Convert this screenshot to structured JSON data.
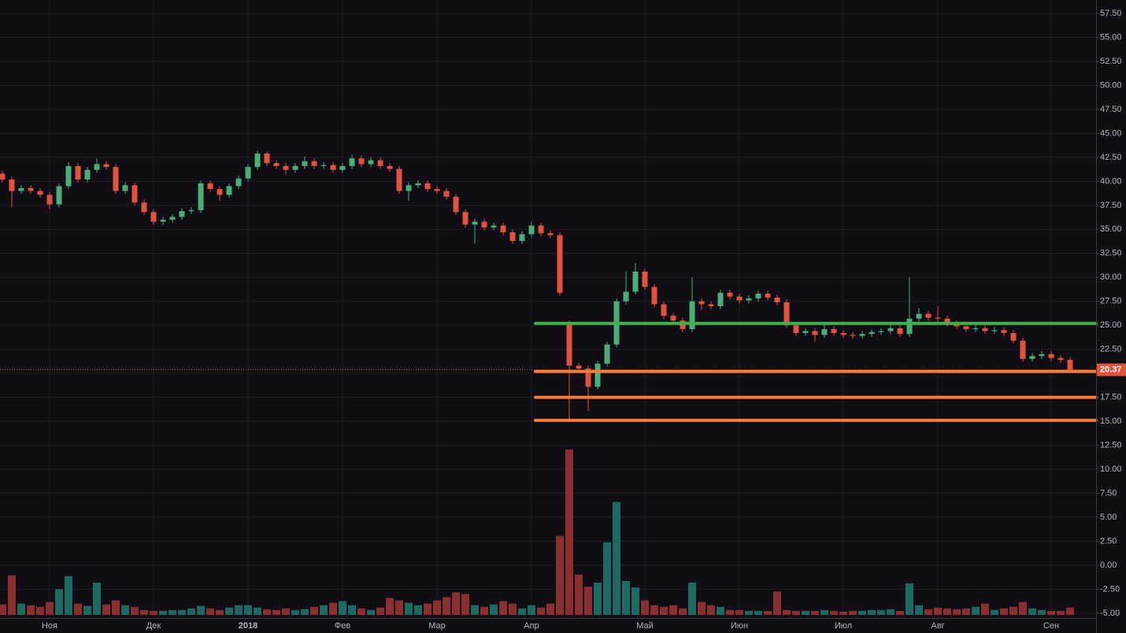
{
  "chart_data": {
    "type": "candlestick",
    "categories": [
      null,
      null,
      null,
      null,
      null,
      "Ноя",
      null,
      null,
      null,
      null,
      null,
      null,
      null,
      null,
      null,
      null,
      "Дек",
      null,
      null,
      null,
      null,
      null,
      null,
      null,
      null,
      null,
      "2018",
      null,
      null,
      null,
      null,
      null,
      null,
      null,
      null,
      null,
      "Фев",
      null,
      null,
      null,
      null,
      null,
      null,
      null,
      null,
      null,
      "Мар",
      null,
      null,
      null,
      null,
      null,
      null,
      null,
      null,
      null,
      "Апр",
      null,
      null,
      null,
      null,
      null,
      null,
      null,
      null,
      null,
      null,
      null,
      "Май",
      null,
      null,
      null,
      null,
      null,
      null,
      null,
      null,
      null,
      "Июн",
      null,
      null,
      null,
      null,
      null,
      null,
      null,
      null,
      null,
      null,
      "Июл",
      null,
      null,
      null,
      null,
      null,
      null,
      null,
      null,
      null,
      "Авг",
      null,
      null,
      null,
      null,
      null,
      null,
      null,
      null,
      null,
      null,
      null,
      "Сен",
      null,
      null
    ],
    "open": [
      40.8,
      40.2,
      39.0,
      39.3,
      39.0,
      38.6,
      37.6,
      39.5,
      41.6,
      40.2,
      41.2,
      41.8,
      41.5,
      39.0,
      39.6,
      37.8,
      36.8,
      35.8,
      36.0,
      36.3,
      36.9,
      37.0,
      39.8,
      39.2,
      38.6,
      39.5,
      40.3,
      41.5,
      42.9,
      41.9,
      41.6,
      41.2,
      41.6,
      42.1,
      41.6,
      41.7,
      41.2,
      41.6,
      42.4,
      41.8,
      42.2,
      41.6,
      41.3,
      39.0,
      39.6,
      39.8,
      39.2,
      39.0,
      38.4,
      36.8,
      35.5,
      35.8,
      35.2,
      35.4,
      34.7,
      33.8,
      34.5,
      35.4,
      34.6,
      34.4,
      25.2,
      20.8,
      20.5,
      18.6,
      21.0,
      23.0,
      27.5,
      28.5,
      30.6,
      29.0,
      27.2,
      26.0,
      25.5,
      24.6,
      27.5,
      27.2,
      27.0,
      28.4,
      28.0,
      27.6,
      27.8,
      28.3,
      27.9,
      27.4,
      25.0,
      24.2,
      24.4,
      24.0,
      24.6,
      24.2,
      24.0,
      23.9,
      24.1,
      24.3,
      24.4,
      24.7,
      24.1,
      25.7,
      26.2,
      25.8,
      25.7,
      25.2,
      24.9,
      24.6,
      24.7,
      24.4,
      24.5,
      24.2,
      23.4,
      21.5,
      21.8,
      22.0,
      21.6,
      21.4
    ],
    "high": [
      41.1,
      40.5,
      39.6,
      39.6,
      39.3,
      38.9,
      39.8,
      42.0,
      41.9,
      41.5,
      42.4,
      42.1,
      41.8,
      39.9,
      39.9,
      38.1,
      37.1,
      36.3,
      36.6,
      37.2,
      37.3,
      40.1,
      40.1,
      39.5,
      39.8,
      40.6,
      41.8,
      43.2,
      43.1,
      42.2,
      41.9,
      41.9,
      42.6,
      42.4,
      42.0,
      42.0,
      41.9,
      42.8,
      42.7,
      42.5,
      42.5,
      41.9,
      41.6,
      39.9,
      40.1,
      40.1,
      39.5,
      39.3,
      38.7,
      37.1,
      36.1,
      36.1,
      35.7,
      35.7,
      35.0,
      34.8,
      35.8,
      35.7,
      34.9,
      34.7,
      25.5,
      21.1,
      20.8,
      21.3,
      23.3,
      27.8,
      30.6,
      31.5,
      30.9,
      29.3,
      27.5,
      26.3,
      25.8,
      30.0,
      27.8,
      27.5,
      28.7,
      28.7,
      28.3,
      28.1,
      28.6,
      28.6,
      28.2,
      27.7,
      25.3,
      24.7,
      24.7,
      25.3,
      24.9,
      24.5,
      24.3,
      24.4,
      24.6,
      24.7,
      25.2,
      25.0,
      30.0,
      26.8,
      26.5,
      27.0,
      26.0,
      25.5,
      25.2,
      25.0,
      25.0,
      24.8,
      24.8,
      24.5,
      23.7,
      22.1,
      22.3,
      22.3,
      21.9,
      21.7
    ],
    "low": [
      39.9,
      37.3,
      38.7,
      38.7,
      38.3,
      37.1,
      37.3,
      39.2,
      39.9,
      39.9,
      40.9,
      41.2,
      38.7,
      38.7,
      37.5,
      36.5,
      35.5,
      35.5,
      35.7,
      36.0,
      36.6,
      36.7,
      38.9,
      38.0,
      38.3,
      39.2,
      40.0,
      41.2,
      41.6,
      41.3,
      40.7,
      40.9,
      41.3,
      41.3,
      41.3,
      40.9,
      40.9,
      41.3,
      41.5,
      41.5,
      41.3,
      41.0,
      38.7,
      38.0,
      39.3,
      38.9,
      38.7,
      38.1,
      36.5,
      35.2,
      33.5,
      34.9,
      34.9,
      34.4,
      33.5,
      33.5,
      34.2,
      34.3,
      34.1,
      28.1,
      15.2,
      20.2,
      16.1,
      18.3,
      20.7,
      22.7,
      27.2,
      28.2,
      28.7,
      26.9,
      25.7,
      25.2,
      24.3,
      24.3,
      26.6,
      26.7,
      26.7,
      27.7,
      27.3,
      27.3,
      27.5,
      27.6,
      27.1,
      24.7,
      23.9,
      23.9,
      23.3,
      23.7,
      23.9,
      23.7,
      23.6,
      23.6,
      23.8,
      24.0,
      24.1,
      23.8,
      23.8,
      25.4,
      25.5,
      25.4,
      24.9,
      24.6,
      24.3,
      24.3,
      24.1,
      24.1,
      23.9,
      23.1,
      21.2,
      21.2,
      21.5,
      21.3,
      21.1,
      20.07
    ],
    "close": [
      40.2,
      39.0,
      39.3,
      39.0,
      38.6,
      37.6,
      39.5,
      41.6,
      40.2,
      41.2,
      41.8,
      41.5,
      39.0,
      39.6,
      37.8,
      36.8,
      35.8,
      36.0,
      36.3,
      36.9,
      37.0,
      39.8,
      39.2,
      38.6,
      39.5,
      40.3,
      41.5,
      42.9,
      41.9,
      41.6,
      41.2,
      41.6,
      42.1,
      41.6,
      41.7,
      41.2,
      41.6,
      42.4,
      41.8,
      42.2,
      41.6,
      41.3,
      39.0,
      39.6,
      39.8,
      39.2,
      39.0,
      38.4,
      36.8,
      35.5,
      35.8,
      35.2,
      35.4,
      34.7,
      33.8,
      34.5,
      35.4,
      34.6,
      34.4,
      28.4,
      20.8,
      20.5,
      18.6,
      21.0,
      23.0,
      27.5,
      28.5,
      30.6,
      29.0,
      27.2,
      26.0,
      25.5,
      24.6,
      27.5,
      27.2,
      27.0,
      28.4,
      28.0,
      27.6,
      27.8,
      28.3,
      27.9,
      27.4,
      25.0,
      24.2,
      24.4,
      24.0,
      24.6,
      24.2,
      24.0,
      23.9,
      24.1,
      24.3,
      24.4,
      24.7,
      24.1,
      25.7,
      26.2,
      25.8,
      25.7,
      25.2,
      24.9,
      24.6,
      24.7,
      24.4,
      24.5,
      24.2,
      23.4,
      21.5,
      21.8,
      22.0,
      21.6,
      21.4,
      20.37
    ],
    "volume": [
      1.3,
      4.9,
      1.4,
      1.2,
      1.0,
      1.6,
      3.2,
      4.8,
      1.4,
      1.1,
      4.0,
      1.3,
      1.8,
      1.2,
      1.0,
      0.6,
      0.5,
      0.5,
      0.6,
      0.6,
      0.8,
      1.1,
      0.8,
      0.6,
      0.9,
      1.2,
      1.2,
      0.9,
      0.7,
      0.6,
      0.8,
      0.6,
      0.7,
      1.0,
      1.2,
      1.5,
      1.7,
      1.2,
      0.8,
      0.6,
      0.9,
      2.1,
      1.8,
      1.5,
      1.2,
      1.4,
      1.8,
      2.2,
      2.8,
      2.6,
      1.2,
      1.0,
      1.3,
      1.7,
      1.4,
      0.8,
      1.2,
      0.9,
      1.4,
      9.8,
      20.5,
      5.0,
      3.5,
      4.0,
      9.0,
      14.0,
      4.2,
      3.4,
      1.8,
      1.2,
      1.0,
      1.2,
      0.8,
      4.0,
      1.6,
      1.2,
      1.0,
      0.6,
      0.6,
      0.5,
      0.5,
      0.5,
      2.9,
      0.6,
      0.5,
      0.5,
      0.5,
      0.6,
      0.5,
      0.4,
      0.5,
      0.5,
      0.6,
      0.6,
      0.7,
      0.5,
      3.9,
      1.2,
      0.7,
      0.9,
      0.8,
      0.7,
      0.8,
      1.0,
      1.4,
      0.6,
      0.8,
      1.0,
      1.6,
      0.8,
      0.6,
      0.5,
      0.5,
      0.9
    ],
    "up_color": "#4bae79",
    "down_color": "#e0533e",
    "volume_up_color": "#1e6a62",
    "volume_down_color": "#8a2f2f",
    "ylim": [
      -5.5,
      58.9
    ],
    "yticks": [
      {
        "value": -5,
        "label": "-5.00"
      },
      {
        "value": -2.5,
        "label": "-2.50"
      },
      {
        "value": 0,
        "label": "0.00"
      },
      {
        "value": 2.5,
        "label": "2.50"
      },
      {
        "value": 5,
        "label": "5.00"
      },
      {
        "value": 7.5,
        "label": "7.50"
      },
      {
        "value": 10,
        "label": "10.00"
      },
      {
        "value": 12.5,
        "label": "12.50"
      },
      {
        "value": 15,
        "label": "15.00"
      },
      {
        "value": 17.5,
        "label": "17.50"
      },
      {
        "value": 20,
        "label": "20.00"
      },
      {
        "value": 22.5,
        "label": "22.50"
      },
      {
        "value": 25,
        "label": "25.00"
      },
      {
        "value": 27.5,
        "label": "27.50"
      },
      {
        "value": 30,
        "label": "30.00"
      },
      {
        "value": 32.5,
        "label": "32.50"
      },
      {
        "value": 35,
        "label": "35.00"
      },
      {
        "value": 37.5,
        "label": "37.50"
      },
      {
        "value": 40,
        "label": "40.00"
      },
      {
        "value": 42.5,
        "label": "42.50"
      },
      {
        "value": 45,
        "label": "45.00"
      },
      {
        "value": 47.5,
        "label": "47.50"
      },
      {
        "value": 50,
        "label": "50.00"
      },
      {
        "value": 52.5,
        "label": "52.50"
      },
      {
        "value": 55,
        "label": "55.00"
      },
      {
        "value": 57.5,
        "label": "57.50"
      }
    ],
    "grid": true,
    "last_price": {
      "value": 20.37,
      "label": "20.37",
      "color": "#e0533e"
    },
    "levels": [
      {
        "value": 25.2,
        "color": "#3fb14c"
      },
      {
        "value": 20.2,
        "color": "#f57c36"
      },
      {
        "value": 17.5,
        "color": "#f57c36"
      },
      {
        "value": 15.1,
        "color": "#f57c36"
      }
    ]
  }
}
